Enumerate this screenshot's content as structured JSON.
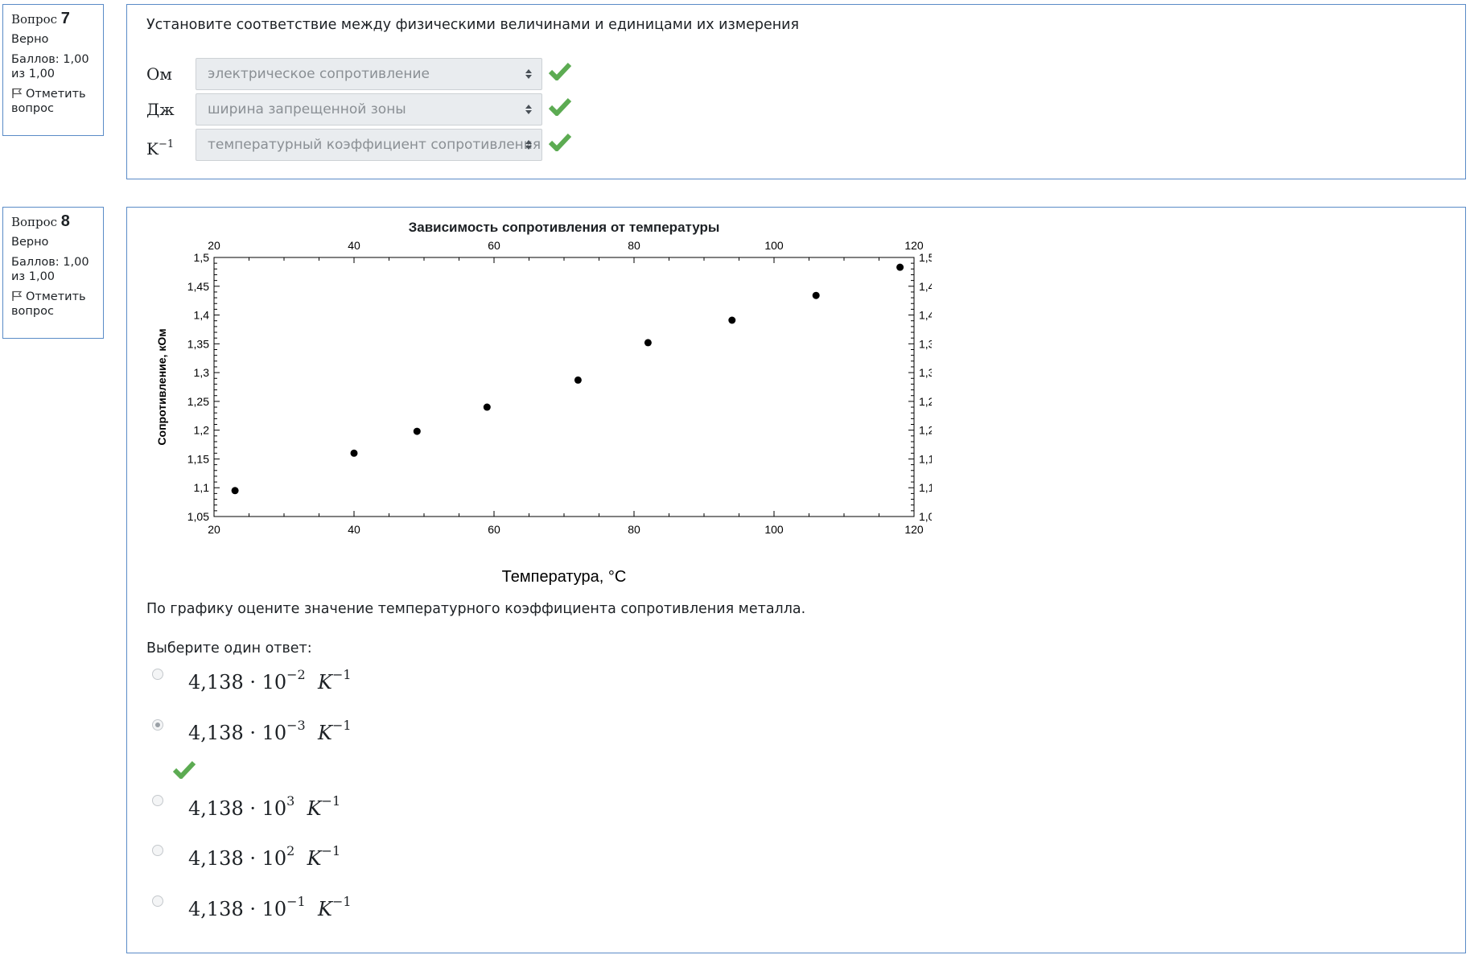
{
  "q7": {
    "info": {
      "label": "Вопрос",
      "number": "7",
      "state": "Верно",
      "grade": "Баллов: 1,00 из 1,00",
      "flag": "Отметить вопрос"
    },
    "text": "Установите соответствие между физическими величинами и единицами их измерения",
    "rows": [
      {
        "label": "Ом",
        "value": "электрическое сопротивление"
      },
      {
        "label": "Дж",
        "value": "ширина запрещенной зоны"
      },
      {
        "label": "K",
        "label_sup": "−1",
        "value": "температурный коэффициент сопротивления"
      }
    ]
  },
  "q8": {
    "info": {
      "label": "Вопрос",
      "number": "8",
      "state": "Верно",
      "grade": "Баллов: 1,00 из 1,00",
      "flag": "Отметить вопрос"
    },
    "question": "По графику оцените значение температурного коэффициента сопротивления металла.",
    "prompt": "Выберите один ответ:",
    "options": [
      {
        "mant": "4,138 · 10",
        "exp": "−2",
        "unit": "K",
        "unit_exp": "−1",
        "selected": false
      },
      {
        "mant": "4,138 · 10",
        "exp": "−3",
        "unit": "K",
        "unit_exp": "−1",
        "selected": true
      },
      {
        "mant": "4,138 · 10",
        "exp": "3",
        "unit": "K",
        "unit_exp": "−1",
        "selected": false
      },
      {
        "mant": "4,138 · 10",
        "exp": "2",
        "unit": "K",
        "unit_exp": "−1",
        "selected": false
      },
      {
        "mant": "4,138 · 10",
        "exp": "−1",
        "unit": "K",
        "unit_exp": "−1",
        "selected": false
      }
    ]
  },
  "colors": {
    "border": "#5a8bc7",
    "check": "#5cab52",
    "select_bg": "#e9ecef"
  },
  "icons": {
    "check": "check-icon",
    "flag": "flag-icon",
    "select_arrow": "sort-arrows-icon"
  },
  "chart_data": {
    "type": "scatter",
    "title": "Зависимость сопротивления от температуры",
    "xlabel": "Температура, °C",
    "ylabel": "Сопротивление, кОм",
    "xlim": [
      20,
      120
    ],
    "ylim": [
      1.05,
      1.5
    ],
    "xticks": [
      "20",
      "40",
      "60",
      "80",
      "100",
      "120"
    ],
    "yticks": [
      "1,05",
      "1,1",
      "1,15",
      "1,2",
      "1,25",
      "1,3",
      "1,35",
      "1,4",
      "1,45",
      "1,5"
    ],
    "x": [
      23,
      40,
      49,
      59,
      72,
      82,
      94,
      106,
      118
    ],
    "y": [
      1.095,
      1.16,
      1.198,
      1.24,
      1.287,
      1.352,
      1.391,
      1.434,
      1.483
    ],
    "grid": false,
    "legend": "none"
  }
}
